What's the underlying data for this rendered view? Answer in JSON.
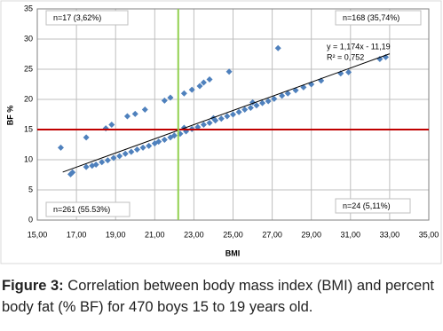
{
  "chart_data": {
    "type": "scatter",
    "x_label": "BMI",
    "y_label": "BF %",
    "xlim": [
      15,
      35
    ],
    "xticks": [
      {
        "value": 15,
        "label": "15,00"
      },
      {
        "value": 17,
        "label": "17,00"
      },
      {
        "value": 19,
        "label": "19,00"
      },
      {
        "value": 21,
        "label": "21,00"
      },
      {
        "value": 23,
        "label": "23,00"
      },
      {
        "value": 25,
        "label": "25,00"
      },
      {
        "value": 27,
        "label": "27,00"
      },
      {
        "value": 29,
        "label": "29,00"
      },
      {
        "value": 31,
        "label": "31,00"
      },
      {
        "value": 33,
        "label": "33,00"
      },
      {
        "value": 35,
        "label": "35,00"
      }
    ],
    "ylim": [
      0,
      35
    ],
    "yticks": [
      0,
      5,
      10,
      15,
      20,
      25,
      30,
      35
    ],
    "grid": true,
    "color": "#4f81bd",
    "x": [
      16.2,
      17.5,
      18.5,
      18.8,
      19.6,
      20.0,
      20.5,
      21.5,
      21.8,
      22.5,
      22.9,
      23.3,
      23.5,
      23.8,
      24.8,
      27.3,
      16.7,
      16.8,
      17.5,
      17.8,
      18.0,
      18.3,
      18.6,
      18.9,
      19.2,
      19.5,
      19.8,
      20.1,
      20.4,
      20.7,
      21.0,
      21.2,
      21.5,
      21.8,
      22.0,
      22.3,
      22.6,
      22.9,
      23.2,
      23.5,
      23.8,
      24.1,
      24.4,
      24.7,
      25.0,
      25.3,
      25.6,
      25.9,
      26.2,
      26.5,
      26.8,
      27.1,
      27.5,
      27.8,
      28.2,
      28.6,
      29.0,
      29.5,
      30.5,
      30.9,
      32.5,
      32.8,
      22.5,
      24.0,
      26.0
    ],
    "values": [
      12.0,
      13.7,
      15.2,
      15.8,
      17.2,
      17.6,
      18.3,
      19.8,
      20.3,
      21.0,
      21.6,
      22.2,
      22.8,
      23.3,
      24.6,
      28.5,
      7.6,
      7.9,
      8.8,
      9.0,
      9.2,
      9.6,
      9.9,
      10.3,
      10.6,
      11.0,
      11.3,
      11.7,
      12.0,
      12.3,
      12.7,
      13.0,
      13.3,
      13.7,
      14.0,
      14.3,
      14.7,
      15.1,
      15.4,
      15.8,
      16.1,
      16.5,
      16.8,
      17.2,
      17.5,
      17.9,
      18.3,
      18.6,
      19.0,
      19.4,
      19.7,
      20.1,
      20.6,
      21.0,
      21.5,
      22.0,
      22.5,
      23.1,
      24.3,
      24.5,
      26.7,
      27.0,
      15.3,
      16.9,
      19.5
    ],
    "trendline": {
      "x": [
        16.3,
        33.0
      ],
      "values": [
        7.946,
        27.552
      ],
      "color": "#000000"
    },
    "trendline_label": [
      "y = 1,174x - 11,19",
      "R² = 0,752"
    ],
    "hlines": [
      {
        "value": 15,
        "color": "#c00000"
      }
    ],
    "vlines": [
      {
        "value": 22.2,
        "color": "#92d050"
      }
    ],
    "annotations": [
      "n=17 (3,62%)",
      "n=168 (35,74%)",
      "n=261 (55.53%)",
      "n=24 (5,11%)"
    ]
  },
  "caption": {
    "label": "Figure 3:",
    "text": "Correlation between body mass index (BMI) and percent body fat (% BF) for 470 boys 15 to 19 years old."
  }
}
